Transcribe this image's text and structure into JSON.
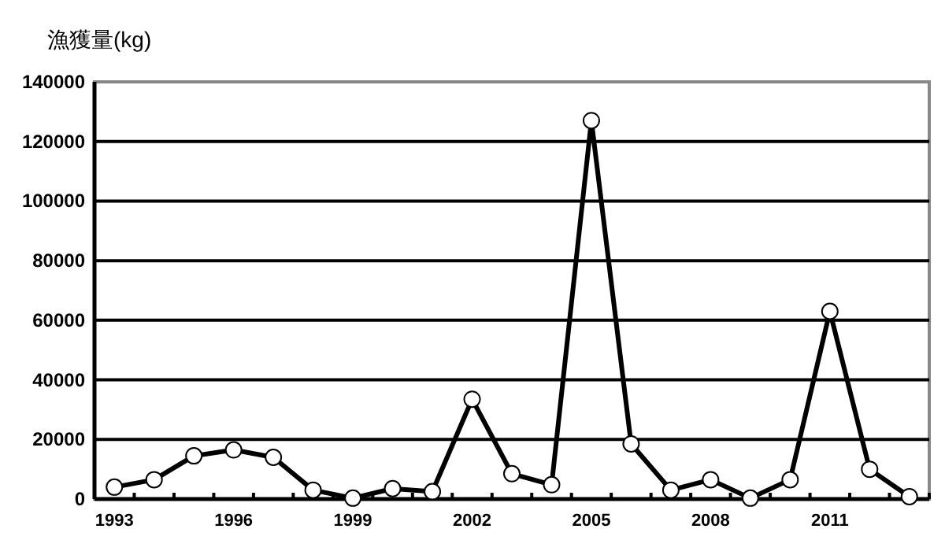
{
  "chart_data": {
    "type": "line",
    "ylabel": "漁獲量(kg)",
    "categories": [
      "1993",
      null,
      null,
      "1996",
      null,
      null,
      "1999",
      null,
      null,
      "2002",
      null,
      null,
      "2005",
      null,
      null,
      "2008",
      null,
      null,
      "2011",
      null,
      null
    ],
    "series": [
      {
        "color": "#000000",
        "values": [
          4000,
          6500,
          14500,
          16500,
          14000,
          3000,
          300,
          3500,
          2500,
          33500,
          8500,
          4800,
          127000,
          18500,
          3000,
          6500,
          300,
          6500,
          63000,
          10000,
          800
        ]
      }
    ],
    "ylim": [
      0,
      140000
    ],
    "yticks": [
      0,
      20000,
      40000,
      60000,
      80000,
      100000,
      120000,
      140000
    ],
    "grid": "y",
    "marker": "circle",
    "line_style": "solid"
  }
}
